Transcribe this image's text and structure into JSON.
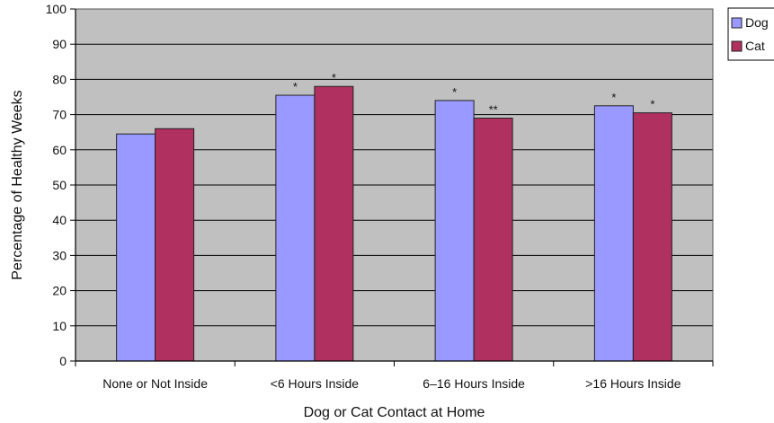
{
  "chart_data": {
    "type": "bar",
    "title": "",
    "xlabel": "Dog or Cat Contact at Home",
    "ylabel": "Percentage of Healthy Weeks",
    "ylim": [
      0,
      100
    ],
    "yticks": [
      0,
      10,
      20,
      30,
      40,
      50,
      60,
      70,
      80,
      90,
      100
    ],
    "grid": true,
    "legend_position": "top-right",
    "categories": [
      "None or Not Inside",
      "<6 Hours Inside",
      "6–16 Hours Inside",
      ">16 Hours Inside"
    ],
    "series": [
      {
        "name": "Dog",
        "color": "#9999ff",
        "values": [
          64.5,
          75.5,
          74,
          72.5
        ],
        "markers": [
          "",
          "*",
          "*",
          "*"
        ]
      },
      {
        "name": "Cat",
        "color": "#b03060",
        "values": [
          66,
          78,
          69,
          70.5
        ],
        "markers": [
          "",
          "*",
          "**",
          "*"
        ]
      }
    ],
    "plot_background": "#c0c0c0"
  }
}
